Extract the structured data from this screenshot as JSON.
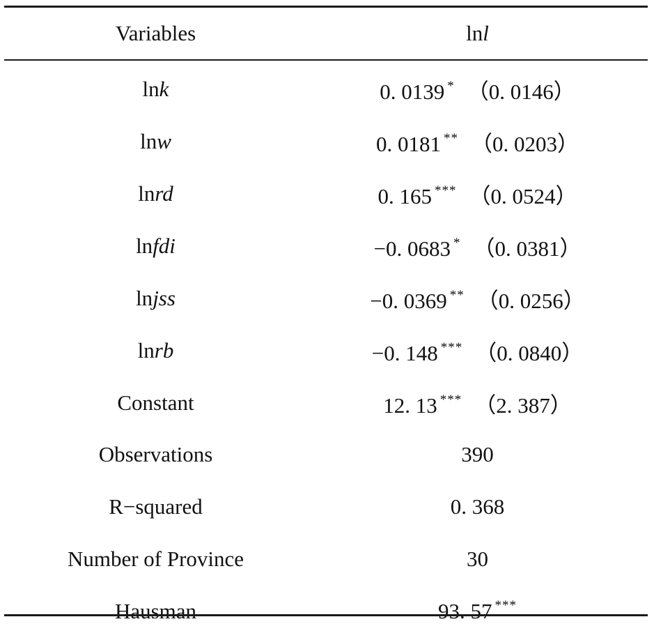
{
  "header": {
    "variables_label": "Variables",
    "column_prefix": "ln",
    "column_var": "l"
  },
  "rows": [
    {
      "prefix": "ln",
      "var": "k",
      "coef": "0. 0139",
      "stars": "*",
      "se": "（0. 0146）"
    },
    {
      "prefix": "ln",
      "var": "w",
      "coef": "0. 0181",
      "stars": "**",
      "se": "（0. 0203）"
    },
    {
      "prefix": "ln",
      "var": "rd",
      "coef": "0. 165",
      "stars": "***",
      "se": "（0. 0524）"
    },
    {
      "prefix": "ln",
      "var": "fdi",
      "coef": "−0. 0683",
      "stars": "*",
      "se": "（0. 0381）"
    },
    {
      "prefix": "ln",
      "var": "jss",
      "coef": "−0. 0369",
      "stars": "**",
      "se": "（0. 0256）"
    },
    {
      "prefix": "ln",
      "var": "rb",
      "coef": "−0. 148",
      "stars": "***",
      "se": "（0. 0840）"
    },
    {
      "label": "Constant",
      "coef": "12. 13",
      "stars": "***",
      "se": "（2. 387）"
    }
  ],
  "stats": [
    {
      "label": "Observations",
      "value": "390",
      "stars": ""
    },
    {
      "label": "R−squared",
      "value": "0. 368",
      "stars": ""
    },
    {
      "label": "Number of Province",
      "value": "30",
      "stars": ""
    },
    {
      "label": "Hausman",
      "value": "93. 57",
      "stars": "***"
    }
  ]
}
